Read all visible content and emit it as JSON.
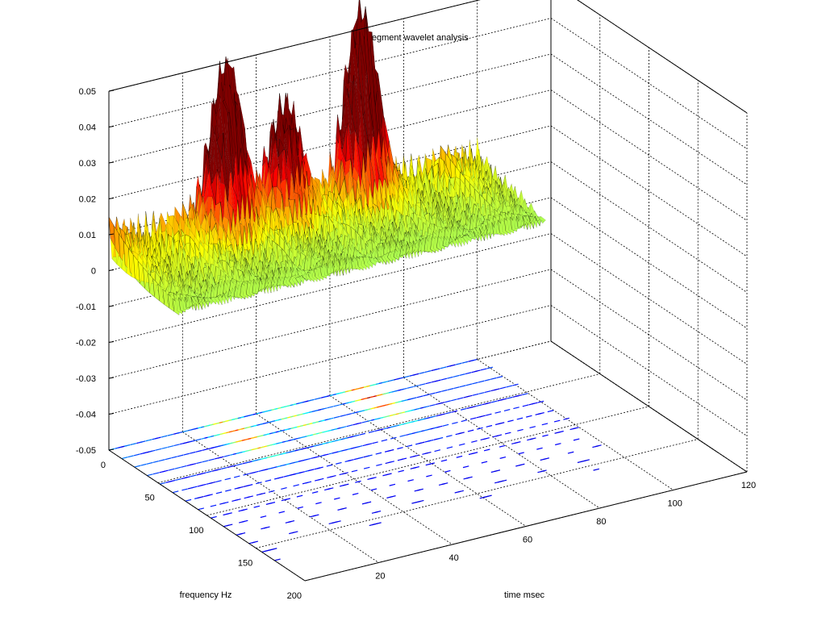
{
  "chart_data": {
    "type": "surface",
    "title": "P segment wavelet analysis",
    "xlabel": "time msec",
    "ylabel": "frequency Hz",
    "zlabel": "",
    "xlim": [
      0,
      120
    ],
    "ylim": [
      0,
      200
    ],
    "zlim": [
      -0.05,
      0.05
    ],
    "x_ticks": [
      "20",
      "40",
      "60",
      "80",
      "100",
      "120"
    ],
    "y_ticks": [
      "0",
      "50",
      "100",
      "150",
      "200"
    ],
    "z_ticks": [
      "0.05",
      "0.04",
      "0.03",
      "0.02",
      "0.01",
      "0",
      "-0.01",
      "-0.02",
      "-0.03",
      "-0.04",
      "-0.05"
    ],
    "grid": true,
    "colormap": "jet",
    "contour_projection": "z = -0.05 plane",
    "peaks": [
      {
        "time_msec": 30,
        "frequency_hz": 8,
        "magnitude": 0.045
      },
      {
        "time_msec": 46,
        "frequency_hz": 8,
        "magnitude": 0.03
      },
      {
        "time_msec": 67,
        "frequency_hz": 6,
        "magnitude": 0.05
      }
    ]
  }
}
